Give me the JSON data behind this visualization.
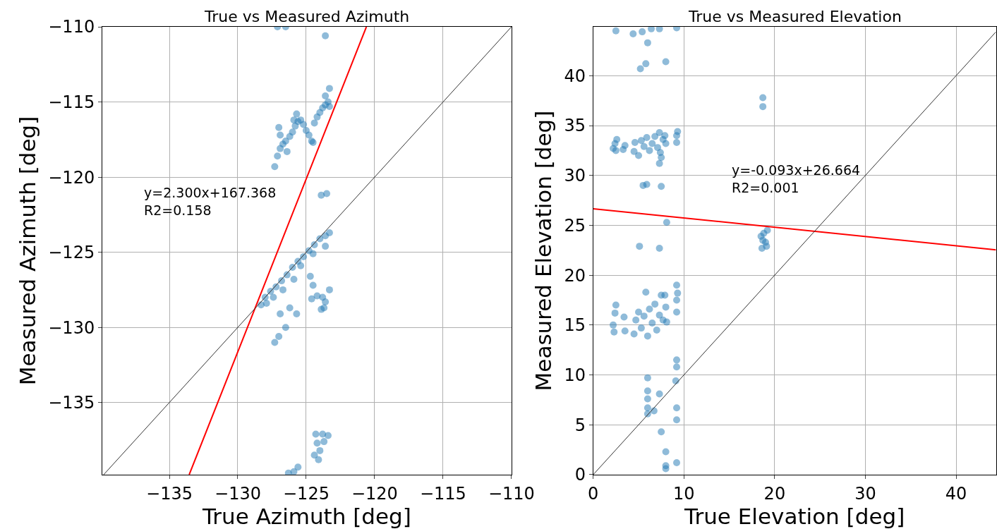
{
  "chart_data": [
    {
      "type": "scatter",
      "title": "True vs Measured Azimuth",
      "xlabel": "True Azimuth [deg]",
      "ylabel": "Measured Azimuth [deg]",
      "xlim": [
        -139.9,
        -110
      ],
      "ylim": [
        -139.8,
        -110
      ],
      "xticks": [
        -135,
        -130,
        -125,
        -120,
        -115,
        -110
      ],
      "yticks": [
        -135,
        -130,
        -125,
        -120,
        -115,
        -110
      ],
      "grid": true,
      "marker": "circle",
      "annotations": [
        "y=2.300x+167.368\nR2=0.158"
      ],
      "series": [
        {
          "color": "#1f77b4",
          "x": [
            -127.3,
            -127.0,
            -126.9,
            -127.1,
            -126.9,
            -126.7,
            -126.5,
            -126.2,
            -126.0,
            -125.8,
            -125.6,
            -125.4,
            -125.2,
            -125.0,
            -124.8,
            -124.6,
            -124.5,
            -124.4,
            -124.2,
            -124.0,
            -123.8,
            -123.6,
            -123.4,
            -123.3,
            -123.6,
            -123.3,
            -125.7,
            -126.4,
            -125.9,
            -127.1,
            -126.5,
            -123.6,
            -123.9,
            -123.5,
            -128.3,
            -128.0,
            -127.6,
            -127.2,
            -126.8,
            -126.4,
            -126.0,
            -125.6,
            -125.2,
            -124.8,
            -124.4,
            -124.0,
            -123.6,
            -123.3,
            -127.9,
            -127.4,
            -126.7,
            -125.9,
            -125.4,
            -124.5,
            -123.6,
            -126.2,
            -125.7,
            -126.9,
            -126.5,
            -127.0,
            -127.3,
            -124.7,
            -124.5,
            -124.6,
            -124.2,
            -123.8,
            -123.3,
            -123.6,
            -123.9,
            -123.7,
            -124.3,
            -123.8,
            -123.4,
            -124.2,
            -123.7,
            -124.0,
            -124.4,
            -124.1,
            -126.3,
            -125.9,
            -125.6
          ],
          "values": [
            -119.3,
            -116.7,
            -117.2,
            -118.6,
            -118.1,
            -117.8,
            -117.6,
            -117.3,
            -117.0,
            -116.6,
            -116.3,
            -116.2,
            -116.5,
            -116.9,
            -117.2,
            -117.6,
            -117.7,
            -116.4,
            -116.0,
            -115.7,
            -115.4,
            -115.2,
            -115.0,
            -115.3,
            -114.6,
            -114.1,
            -115.8,
            -118.3,
            -116.2,
            -110.0,
            -110.0,
            -110.6,
            -121.2,
            -121.1,
            -128.5,
            -128.0,
            -127.6,
            -127.3,
            -126.9,
            -126.5,
            -126.0,
            -125.6,
            -125.3,
            -124.9,
            -124.5,
            -124.1,
            -123.9,
            -123.7,
            -128.4,
            -128.0,
            -127.5,
            -126.8,
            -125.9,
            -125.1,
            -124.6,
            -128.7,
            -129.1,
            -129.1,
            -130.0,
            -130.6,
            -131.0,
            -126.6,
            -127.2,
            -128.1,
            -127.9,
            -128.0,
            -127.5,
            -128.3,
            -128.8,
            -128.7,
            -137.1,
            -137.1,
            -137.2,
            -137.7,
            -137.6,
            -138.2,
            -138.5,
            -138.8,
            -139.7,
            -139.6,
            -139.3
          ]
        },
        {
          "type": "line",
          "marker": "none",
          "color": "#ff0000",
          "x": [
            -133.55,
            -120.6
          ],
          "values": [
            -139.8,
            -110.0
          ]
        },
        {
          "type": "line",
          "marker": "none",
          "color": "#333333",
          "x": [
            -139.8,
            -110
          ],
          "values": [
            -139.8,
            -110
          ]
        }
      ]
    },
    {
      "type": "scatter",
      "title": "True vs Measured Elevation",
      "xlabel": "True Elevation [deg]",
      "ylabel": "Measured Elevation [deg]",
      "xlim": [
        0,
        44.4
      ],
      "ylim": [
        0,
        44.9
      ],
      "xticks": [
        0,
        10,
        20,
        30,
        40
      ],
      "yticks": [
        0,
        5,
        10,
        15,
        20,
        25,
        30,
        35,
        40
      ],
      "grid": true,
      "marker": "circle",
      "annotations": [
        "y=-0.093x+26.664\nR2=0.001"
      ],
      "series": [
        {
          "color": "#1f77b4",
          "x": [
            2.2,
            2.4,
            2.6,
            2.5,
            3.3,
            3.5,
            4.5,
            4.6,
            5.0,
            5.3,
            5.6,
            5.9,
            6.2,
            6.5,
            6.8,
            7.1,
            7.3,
            7.4,
            7.7,
            7.9,
            8.0,
            9.2,
            9.2,
            9.3,
            7.3,
            7.5,
            2.5,
            4.4,
            5.4,
            6.4,
            7.3,
            9.2,
            6.0,
            5.2,
            5.8,
            8.0,
            18.7,
            18.7,
            5.5,
            5.9,
            7.5,
            8.1,
            5.1,
            7.3,
            18.5,
            18.6,
            18.8,
            19.0,
            19.2,
            19.1,
            18.7,
            2.2,
            2.4,
            2.5,
            2.3,
            3.4,
            3.5,
            4.5,
            4.7,
            5.0,
            5.3,
            5.6,
            5.8,
            6.0,
            6.2,
            6.5,
            6.8,
            7.0,
            7.3,
            7.5,
            7.7,
            8.0,
            8.1,
            7.9,
            9.2,
            9.2,
            9.2,
            9.3,
            6.0,
            6.0,
            6.0,
            6.0,
            6.0,
            6.7,
            7.3,
            7.5,
            8.0,
            8.0,
            8.0,
            9.2,
            9.2,
            9.2,
            9.1,
            9.2,
            9.2
          ],
          "values": [
            32.7,
            33.2,
            33.6,
            32.5,
            32.6,
            33.0,
            32.4,
            33.3,
            32.0,
            33.5,
            32.9,
            33.8,
            32.5,
            33.2,
            33.9,
            32.8,
            34.3,
            32.3,
            33.6,
            34.0,
            33.2,
            33.3,
            34.0,
            34.4,
            31.2,
            31.8,
            44.5,
            44.2,
            44.4,
            44.7,
            44.7,
            44.8,
            43.3,
            40.7,
            41.2,
            41.4,
            37.8,
            36.9,
            29.0,
            29.1,
            28.9,
            25.3,
            22.9,
            22.7,
            23.9,
            22.7,
            24.2,
            23.3,
            24.5,
            22.9,
            23.5,
            15.0,
            16.2,
            17.0,
            14.3,
            15.8,
            14.4,
            14.1,
            15.5,
            16.3,
            14.7,
            15.9,
            18.3,
            13.9,
            16.6,
            15.2,
            17.1,
            14.5,
            16.0,
            18.0,
            15.5,
            16.8,
            15.3,
            18.0,
            16.3,
            17.5,
            19.0,
            18.2,
            9.7,
            8.4,
            7.6,
            6.7,
            6.1,
            6.4,
            8.1,
            4.3,
            2.3,
            0.9,
            0.6,
            1.2,
            5.5,
            6.7,
            9.4,
            10.8,
            11.5
          ]
        },
        {
          "type": "line",
          "marker": "none",
          "color": "#ff0000",
          "x": [
            0,
            44.4
          ],
          "values": [
            26.66,
            22.54
          ]
        },
        {
          "type": "line",
          "marker": "none",
          "color": "#333333",
          "x": [
            0,
            44.4
          ],
          "values": [
            0,
            44.4
          ]
        }
      ]
    }
  ]
}
